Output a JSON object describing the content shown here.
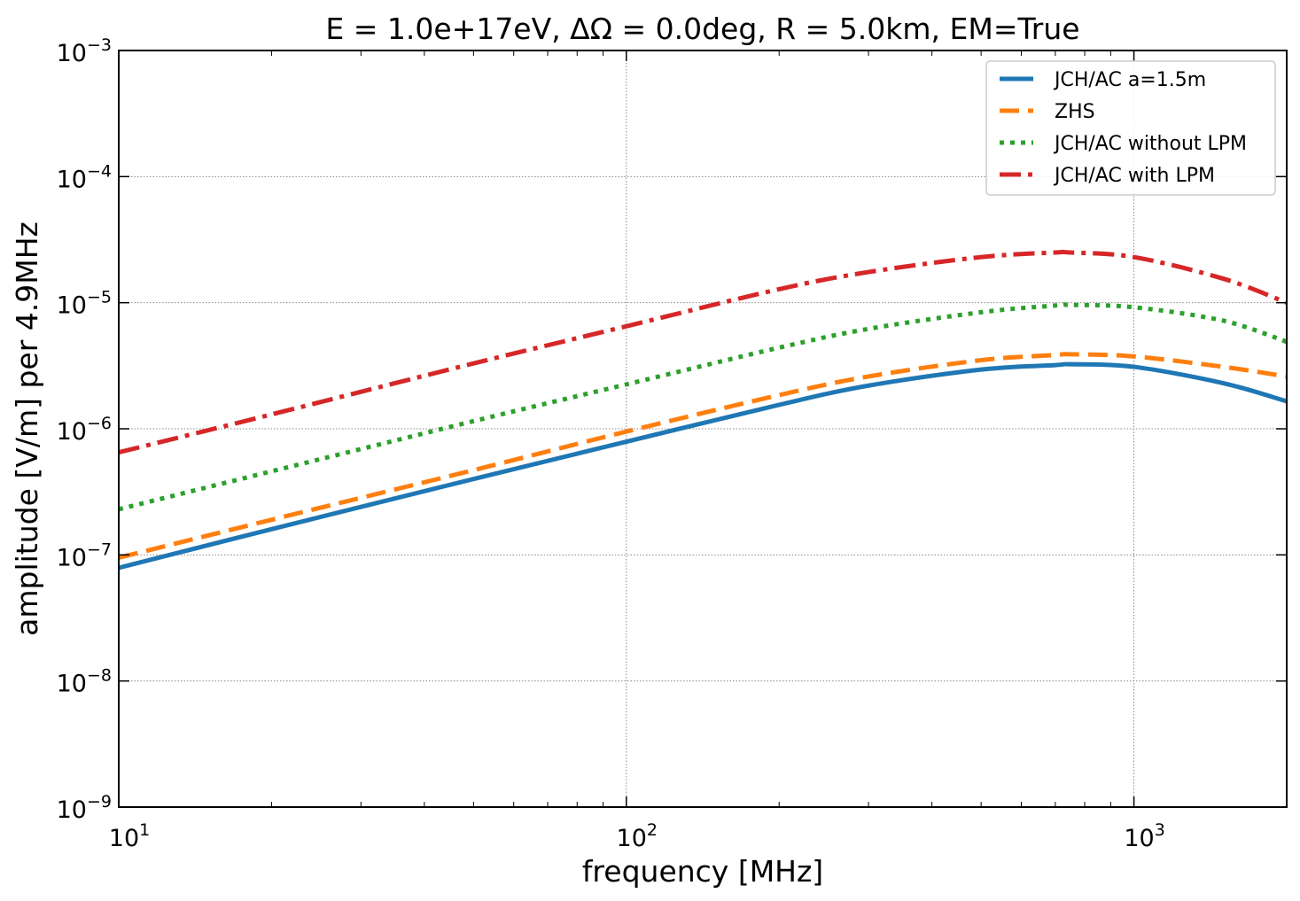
{
  "chart_data": {
    "type": "line",
    "title": "E = 1.0e+17eV, ΔΩ = 0.0deg, R = 5.0km, EM=True",
    "xlabel": "frequency [MHz]",
    "ylabel": "amplitude [V/m] per 4.9MHz",
    "xscale": "log",
    "yscale": "log",
    "xlim": [
      10,
      2000
    ],
    "ylim": [
      1e-09,
      0.001
    ],
    "grid": true,
    "legend_position": "top-right",
    "x_ticks": [
      {
        "base": "10",
        "exp": "1",
        "value": 10
      },
      {
        "base": "10",
        "exp": "2",
        "value": 100
      },
      {
        "base": "10",
        "exp": "3",
        "value": 1000
      }
    ],
    "y_ticks": [
      {
        "base": "10",
        "exp": "−9",
        "value": 1e-09
      },
      {
        "base": "10",
        "exp": "−8",
        "value": 1e-08
      },
      {
        "base": "10",
        "exp": "−7",
        "value": 1e-07
      },
      {
        "base": "10",
        "exp": "−6",
        "value": 1e-06
      },
      {
        "base": "10",
        "exp": "−5",
        "value": 1e-05
      },
      {
        "base": "10",
        "exp": "−4",
        "value": 0.0001
      },
      {
        "base": "10",
        "exp": "−3",
        "value": 0.001
      }
    ],
    "x": [
      10,
      20,
      50,
      100,
      200,
      300,
      500,
      700,
      750,
      1000,
      1500,
      2000
    ],
    "series": [
      {
        "name": "JCH/AC a=1.5m",
        "color": "#1f77b4",
        "style": "solid",
        "values": [
          7.9e-08,
          1.6e-07,
          4e-07,
          7.9e-07,
          1.55e-06,
          2.2e-06,
          2.95e-06,
          3.2e-06,
          3.25e-06,
          3.1e-06,
          2.3e-06,
          1.65e-06
        ]
      },
      {
        "name": "ZHS",
        "color": "#ff7f0e",
        "style": "dashed",
        "values": [
          9.5e-08,
          1.9e-07,
          4.7e-07,
          9.5e-07,
          1.85e-06,
          2.6e-06,
          3.5e-06,
          3.85e-06,
          3.9e-06,
          3.75e-06,
          3.1e-06,
          2.6e-06
        ]
      },
      {
        "name": "JCH/AC without LPM",
        "color": "#2ca02c",
        "style": "dotted",
        "values": [
          2.3e-07,
          4.6e-07,
          1.15e-06,
          2.25e-06,
          4.4e-06,
          6.2e-06,
          8.4e-06,
          9.5e-06,
          9.6e-06,
          9.2e-06,
          7.2e-06,
          4.9e-06
        ]
      },
      {
        "name": "JCH/AC with LPM",
        "color": "#d62728",
        "style": "dashdot",
        "values": [
          6.5e-07,
          1.3e-06,
          3.3e-06,
          6.5e-06,
          1.28e-05,
          1.75e-05,
          2.3e-05,
          2.5e-05,
          2.5e-05,
          2.3e-05,
          1.55e-05,
          1e-05
        ]
      }
    ]
  }
}
